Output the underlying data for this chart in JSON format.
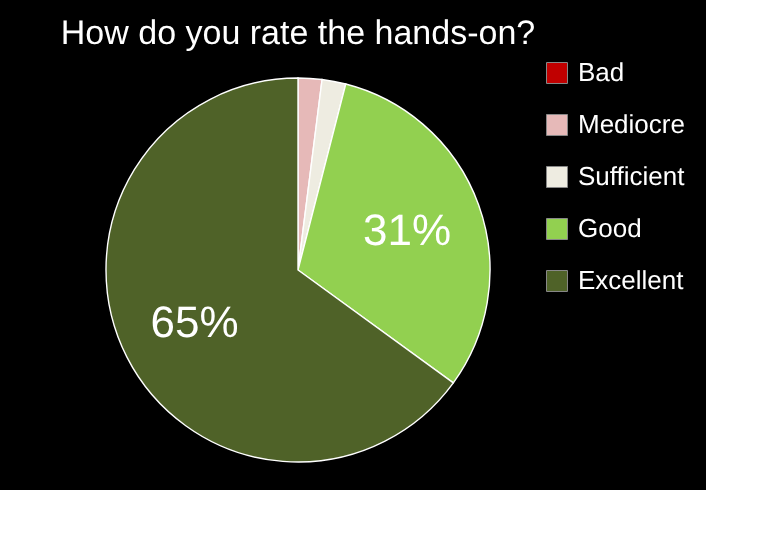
{
  "chart_data": {
    "type": "pie",
    "title": "How do you rate the hands-on?",
    "categories": [
      "Bad",
      "Mediocre",
      "Sufficient",
      "Good",
      "Excellent"
    ],
    "values": [
      0,
      2,
      2,
      31,
      65
    ],
    "colors": [
      "#c00000",
      "#e6b9b8",
      "#eeece1",
      "#92d050",
      "#4f6228"
    ],
    "value_labels": [
      null,
      null,
      null,
      "31%",
      "65%"
    ],
    "legend": "right"
  }
}
